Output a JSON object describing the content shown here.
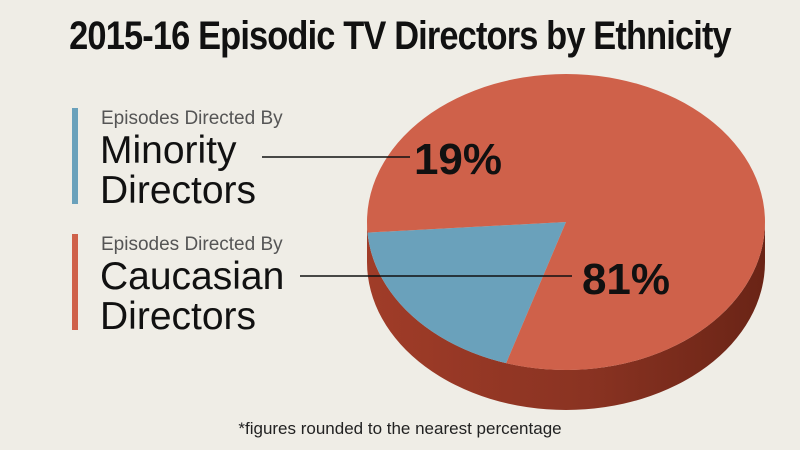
{
  "title": "2015-16 Episodic TV Directors by Ethnicity",
  "footnote": "*figures rounded to the nearest percentage",
  "chart_data": {
    "type": "pie",
    "title": "2015-16 Episodic TV Directors by Ethnicity",
    "slices": [
      {
        "label_small": "Episodes Directed By",
        "label_line1": "Minority",
        "label_line2": "Directors",
        "value": 19,
        "display": "19%",
        "color": "#6aa1bb",
        "side_color": "#3f6f86"
      },
      {
        "label_small": "Episodes Directed By",
        "label_line1": "Caucasian",
        "label_line2": "Directors",
        "value": 81,
        "display": "81%",
        "color": "#cf614a",
        "side_color": "#8a3322"
      }
    ]
  }
}
